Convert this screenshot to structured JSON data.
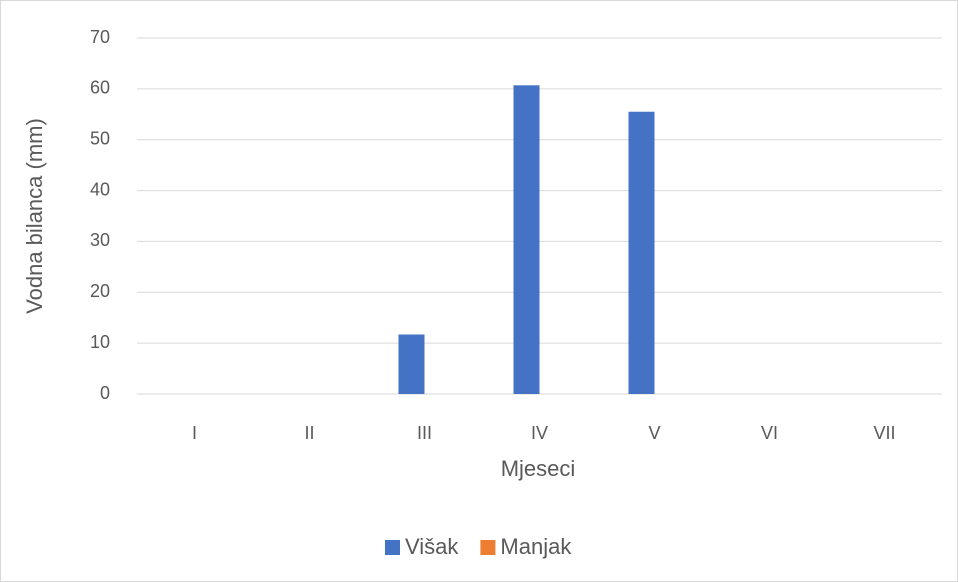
{
  "chart_data": {
    "type": "bar",
    "categories": [
      "I",
      "II",
      "III",
      "IV",
      "V",
      "VI",
      "VII"
    ],
    "series": [
      {
        "name": "Višak",
        "color": "#4472c4",
        "values": [
          0,
          0,
          11.7,
          60.7,
          55.5,
          0,
          0
        ]
      },
      {
        "name": "Manjak",
        "color": "#ed7d31",
        "values": [
          0,
          0,
          0,
          0,
          0,
          0,
          0
        ]
      }
    ],
    "x_label": "Mjeseci",
    "y_label": "Vodna bilanca (mm)",
    "ylim": [
      0,
      70
    ],
    "yticks": [
      0,
      10,
      20,
      30,
      40,
      50,
      60,
      70
    ],
    "grid": true,
    "legend": "bottom"
  }
}
